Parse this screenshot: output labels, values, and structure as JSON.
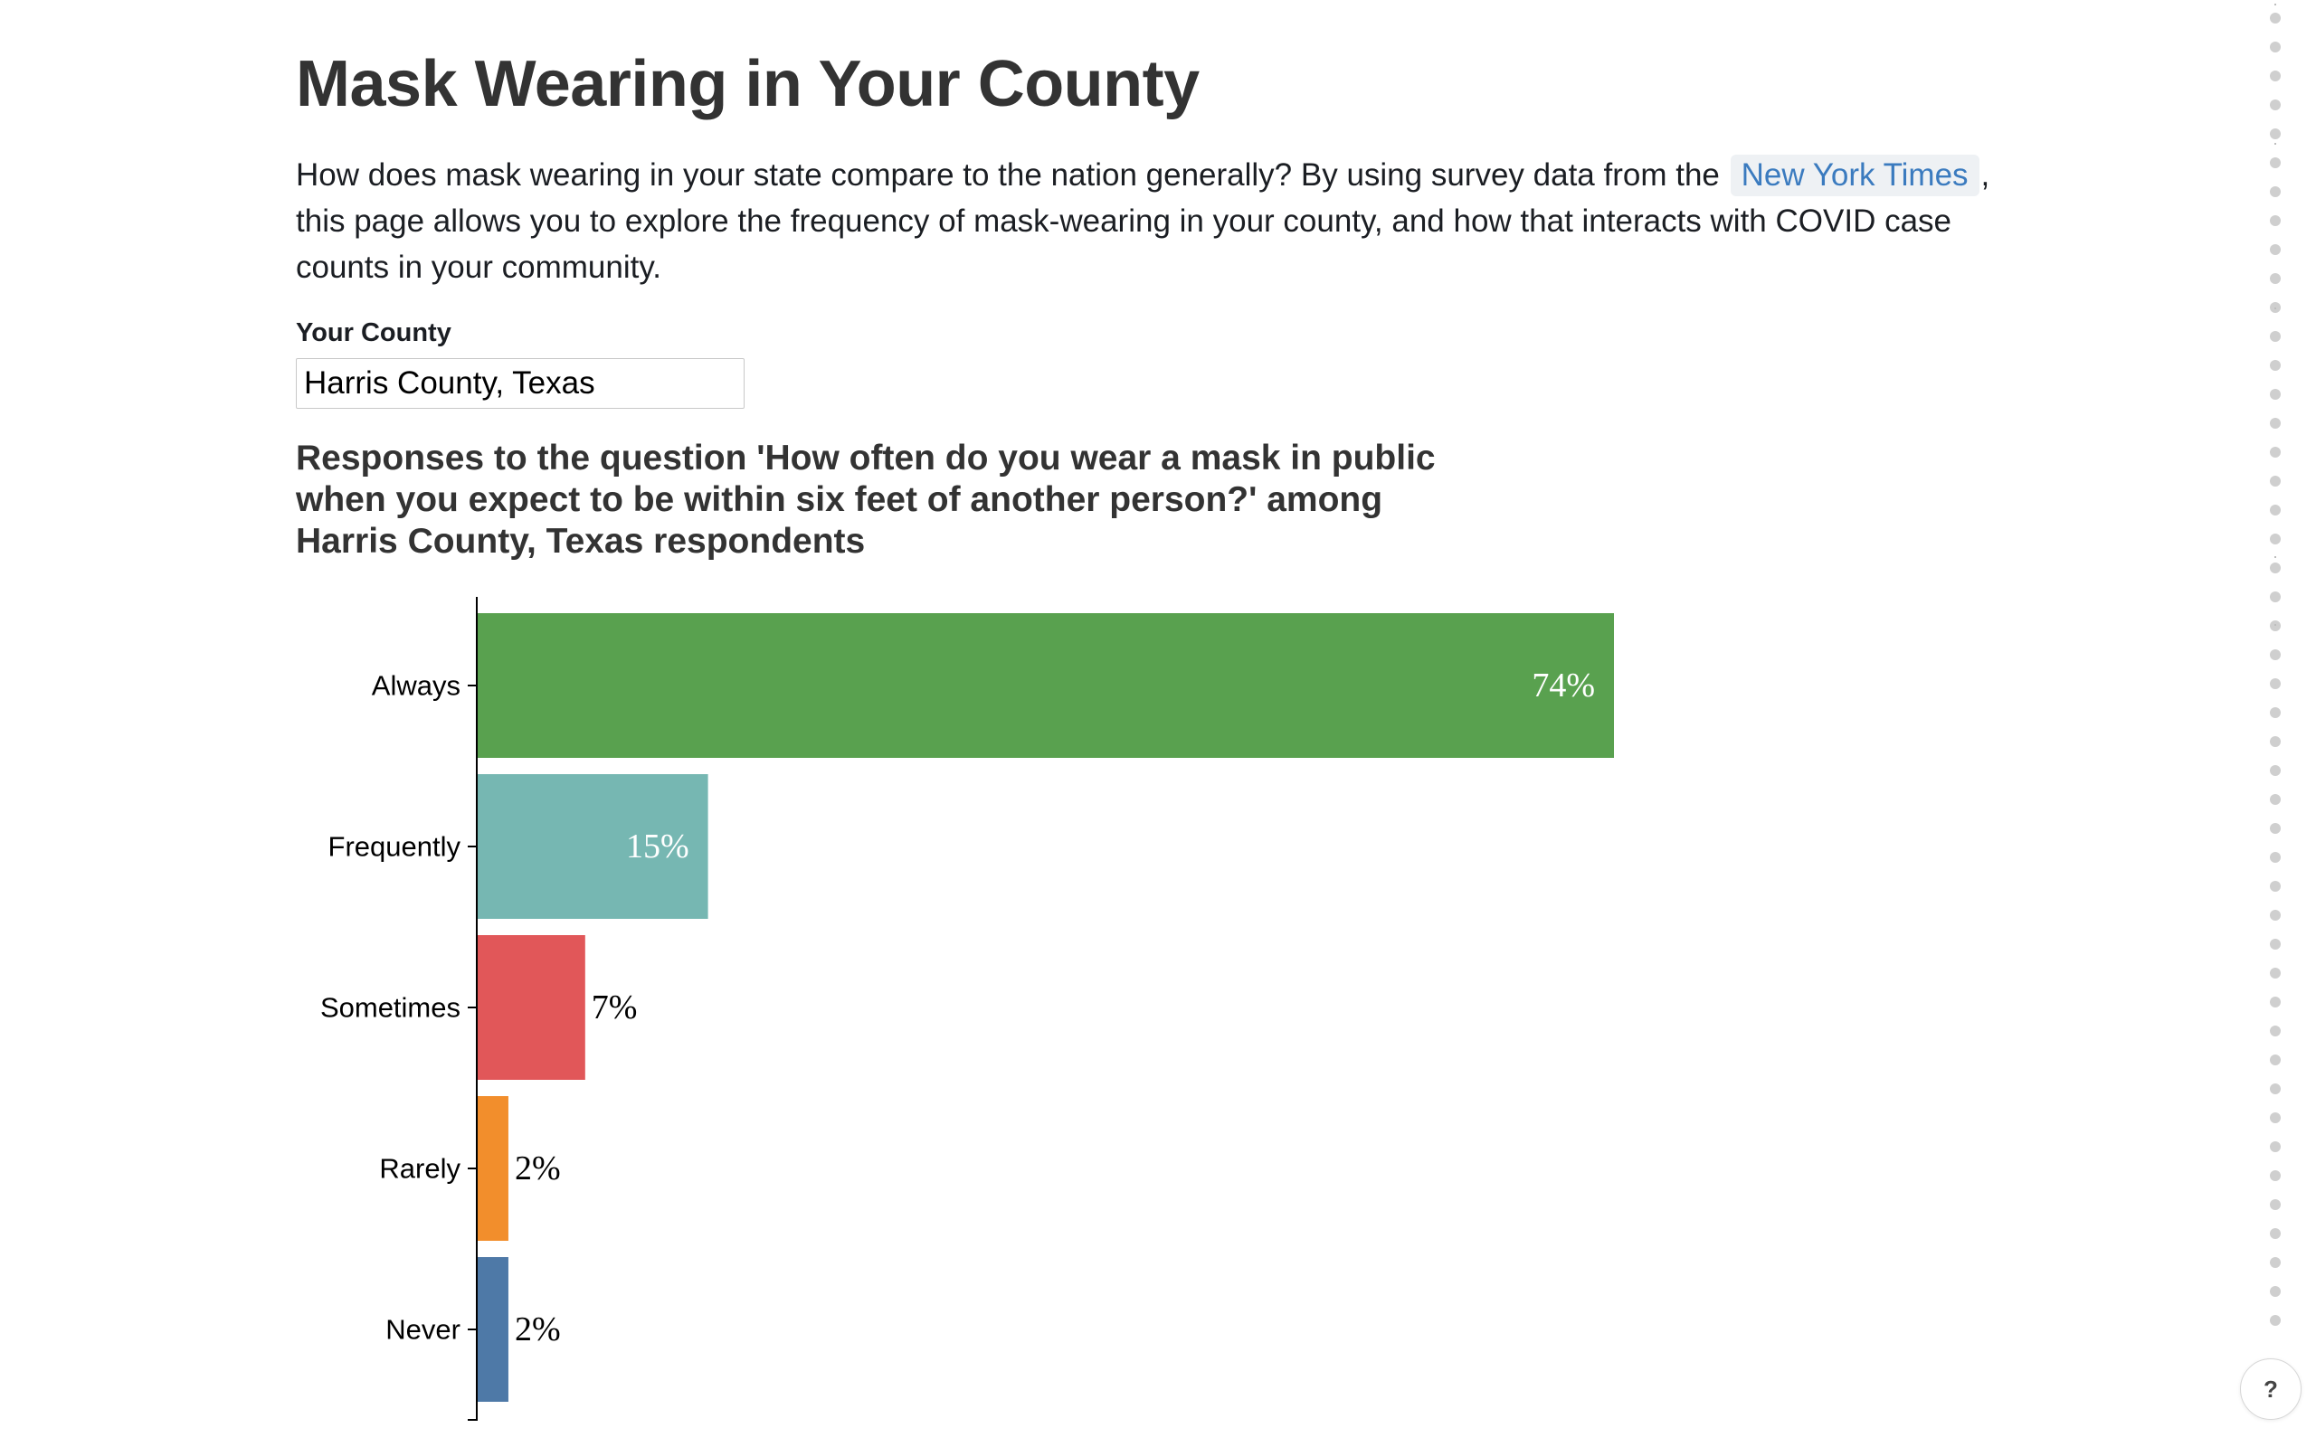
{
  "page": {
    "title": "Mask Wearing in Your County",
    "intro_before": "How does mask wearing in your state compare to the nation generally? By using survey data from the",
    "intro_link": "New York Times",
    "intro_after": ", this page allows you to explore the frequency of mask-wearing in your county, and how that interacts with COVID case counts in your community."
  },
  "county_selector": {
    "label": "Your County",
    "value": "Harris County, Texas"
  },
  "chart_data": {
    "type": "bar",
    "orientation": "horizontal",
    "title": "Responses to the question 'How often do you wear a mask in public when you expect to be within six feet of another person?' among Harris County, Texas respondents",
    "categories": [
      "Always",
      "Frequently",
      "Sometimes",
      "Rarely",
      "Never"
    ],
    "values": [
      74,
      15,
      7,
      2,
      2
    ],
    "value_labels": [
      "74%",
      "15%",
      "7%",
      "2%",
      "2%"
    ],
    "colors": [
      "#59a14f",
      "#76b7b2",
      "#e15759",
      "#f28e2c",
      "#4e79a7"
    ],
    "xlim": [
      0,
      74
    ]
  },
  "help_button": {
    "label": "?"
  }
}
